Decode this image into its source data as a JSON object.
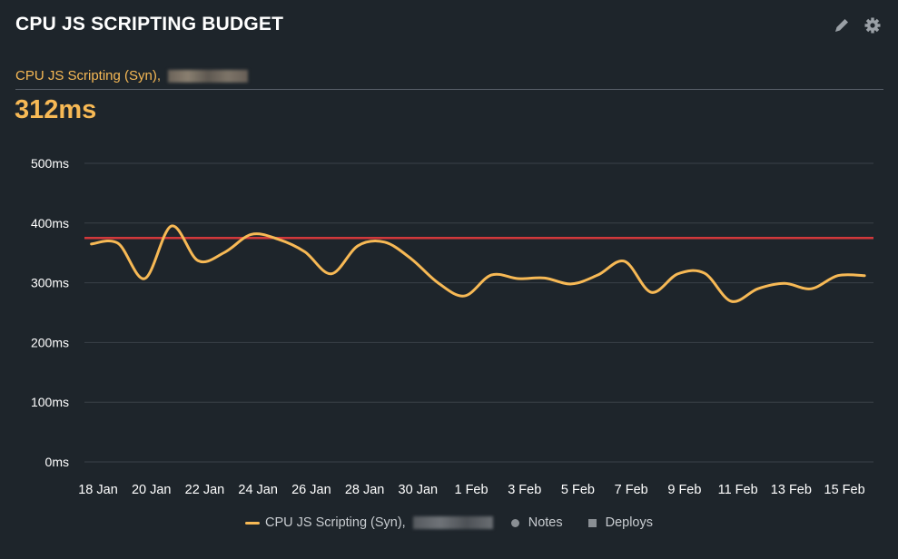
{
  "header": {
    "title": "CPU JS SCRIPTING BUDGET",
    "edit_icon": "pencil-icon",
    "settings_icon": "gear-icon"
  },
  "metric": {
    "label": "CPU JS Scripting (Syn),",
    "current_value": "312ms"
  },
  "colors": {
    "series": "#f7b955",
    "budget": "#d2383b",
    "background": "#1e252b"
  },
  "legend": {
    "series": "CPU JS Scripting (Syn),",
    "notes": "Notes",
    "deploys": "Deploys"
  },
  "chart_data": {
    "type": "line",
    "title": "",
    "ylim": [
      0,
      500
    ],
    "y_ticks": [
      "0ms",
      "100ms",
      "200ms",
      "300ms",
      "400ms",
      "500ms"
    ],
    "x_ticks": [
      "18 Jan",
      "20 Jan",
      "22 Jan",
      "24 Jan",
      "26 Jan",
      "28 Jan",
      "30 Jan",
      "1 Feb",
      "3 Feb",
      "5 Feb",
      "7 Feb",
      "9 Feb",
      "11 Feb",
      "13 Feb",
      "15 Feb"
    ],
    "grid": true,
    "legend_position": "bottom",
    "budget_ms": 375,
    "series": [
      {
        "name": "CPU JS Scripting (Syn),",
        "x": [
          "17 Jan",
          "18 Jan",
          "19 Jan",
          "20 Jan",
          "21 Jan",
          "22 Jan",
          "23 Jan",
          "24 Jan",
          "25 Jan",
          "26 Jan",
          "27 Jan",
          "28 Jan",
          "29 Jan",
          "30 Jan",
          "31 Jan",
          "1 Feb",
          "2 Feb",
          "3 Feb",
          "4 Feb",
          "5 Feb",
          "6 Feb",
          "7 Feb",
          "8 Feb",
          "9 Feb",
          "10 Feb",
          "11 Feb",
          "12 Feb",
          "13 Feb",
          "14 Feb",
          "15 Feb"
        ],
        "values": [
          365,
          366,
          307,
          395,
          337,
          351,
          381,
          373,
          352,
          315,
          362,
          368,
          340,
          300,
          278,
          313,
          307,
          308,
          298,
          313,
          336,
          284,
          315,
          316,
          269,
          290,
          299,
          290,
          312,
          312
        ]
      }
    ]
  }
}
